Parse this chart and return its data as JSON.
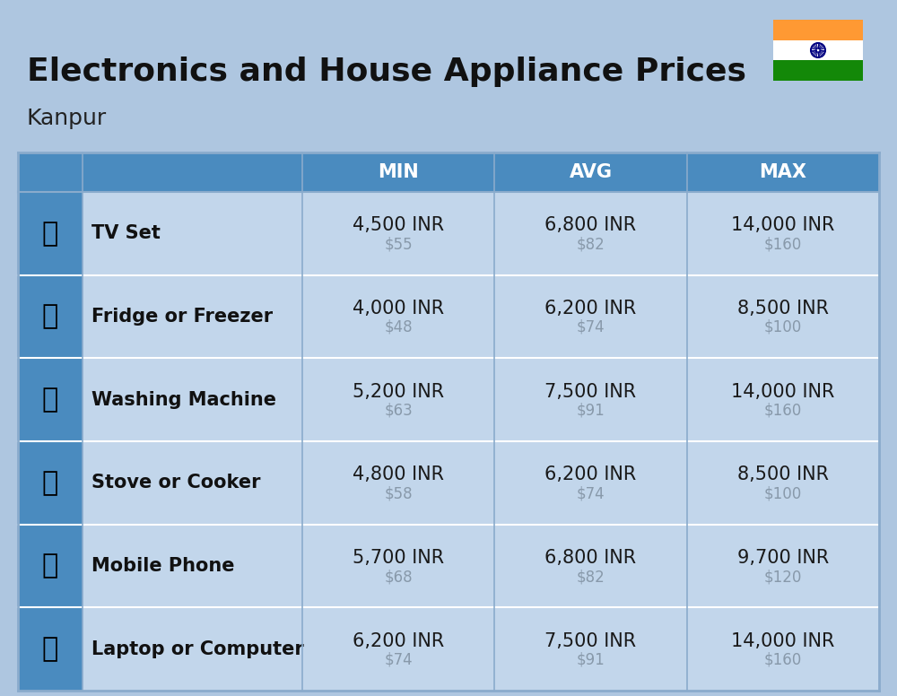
{
  "title": "Electronics and House Appliance Prices",
  "subtitle": "Kanpur",
  "background_color": "#aec6e0",
  "header_bg_color": "#4a8bbf",
  "header_text_color": "#ffffff",
  "row_bg_color": "#c2d6eb",
  "divider_color": "#8aabcc",
  "white_divider": "#ffffff",
  "item_name_color": "#111111",
  "price_inr_color": "#1a1a1a",
  "price_usd_color": "#8899aa",
  "icon_col_bg": "#4a8bbf",
  "headers": [
    "MIN",
    "AVG",
    "MAX"
  ],
  "items": [
    {
      "name": "TV Set",
      "min_inr": "4,500 INR",
      "min_usd": "$55",
      "avg_inr": "6,800 INR",
      "avg_usd": "$82",
      "max_inr": "14,000 INR",
      "max_usd": "$160"
    },
    {
      "name": "Fridge or Freezer",
      "min_inr": "4,000 INR",
      "min_usd": "$48",
      "avg_inr": "6,200 INR",
      "avg_usd": "$74",
      "max_inr": "8,500 INR",
      "max_usd": "$100"
    },
    {
      "name": "Washing Machine",
      "min_inr": "5,200 INR",
      "min_usd": "$63",
      "avg_inr": "7,500 INR",
      "avg_usd": "$91",
      "max_inr": "14,000 INR",
      "max_usd": "$160"
    },
    {
      "name": "Stove or Cooker",
      "min_inr": "4,800 INR",
      "min_usd": "$58",
      "avg_inr": "6,200 INR",
      "avg_usd": "$74",
      "max_inr": "8,500 INR",
      "max_usd": "$100"
    },
    {
      "name": "Mobile Phone",
      "min_inr": "5,700 INR",
      "min_usd": "$68",
      "avg_inr": "6,800 INR",
      "avg_usd": "$82",
      "max_inr": "9,700 INR",
      "max_usd": "$120"
    },
    {
      "name": "Laptop or Computer",
      "min_inr": "6,200 INR",
      "min_usd": "$74",
      "avg_inr": "7,500 INR",
      "avg_usd": "$91",
      "max_inr": "14,000 INR",
      "max_usd": "$160"
    }
  ],
  "icon_emojis": [
    "📺",
    "🧀",
    "🧷",
    "🔥",
    "📱",
    "💻"
  ],
  "title_fontsize": 26,
  "subtitle_fontsize": 18,
  "header_fontsize": 15,
  "item_name_fontsize": 15,
  "price_fontsize": 15,
  "usd_fontsize": 12
}
